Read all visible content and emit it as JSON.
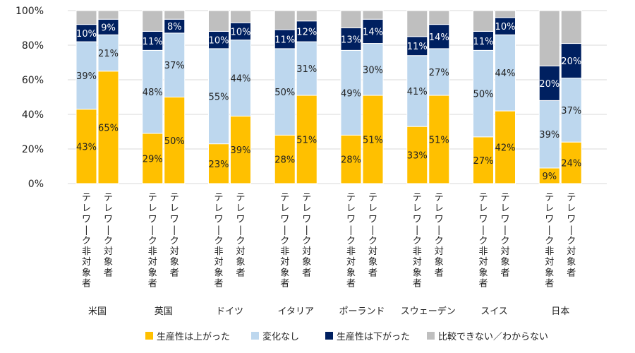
{
  "chart_data": {
    "type": "bar",
    "stacked": true,
    "ylim": [
      0,
      100
    ],
    "yticks": [
      "0%",
      "20%",
      "40%",
      "60%",
      "80%",
      "100%"
    ],
    "bar_labels": [
      "テレワーク非対象者",
      "テレワーク対象者"
    ],
    "countries": [
      "米国",
      "英国",
      "ドイツ",
      "イタリア",
      "ポーランド",
      "スウェーデン",
      "スイス",
      "日本"
    ],
    "series": [
      {
        "name": "生産性は上がった",
        "color": "#ffc000",
        "label_color": "#222222",
        "values": [
          [
            43,
            65
          ],
          [
            29,
            50
          ],
          [
            23,
            39
          ],
          [
            28,
            51
          ],
          [
            28,
            51
          ],
          [
            33,
            51
          ],
          [
            27,
            42
          ],
          [
            9,
            24
          ]
        ]
      },
      {
        "name": "変化なし",
        "color": "#bdd7ee",
        "label_color": "#222222",
        "values": [
          [
            39,
            21
          ],
          [
            48,
            37
          ],
          [
            55,
            44
          ],
          [
            50,
            31
          ],
          [
            49,
            30
          ],
          [
            41,
            27
          ],
          [
            50,
            44
          ],
          [
            39,
            37
          ]
        ]
      },
      {
        "name": "生産性は下がった",
        "color": "#002060",
        "label_color": "#ffffff",
        "values": [
          [
            10,
            9
          ],
          [
            11,
            8
          ],
          [
            10,
            10
          ],
          [
            11,
            12
          ],
          [
            13,
            14
          ],
          [
            11,
            14
          ],
          [
            11,
            10
          ],
          [
            20,
            20
          ]
        ]
      },
      {
        "name": "比較できない／わからない",
        "color": "#bfbfbf",
        "label_color": "#222222",
        "values": [
          [
            8,
            5
          ],
          [
            12,
            5
          ],
          [
            12,
            7
          ],
          [
            11,
            6
          ],
          [
            10,
            5
          ],
          [
            15,
            8
          ],
          [
            12,
            4
          ],
          [
            32,
            19
          ]
        ]
      }
    ],
    "legend_position": "bottom"
  }
}
